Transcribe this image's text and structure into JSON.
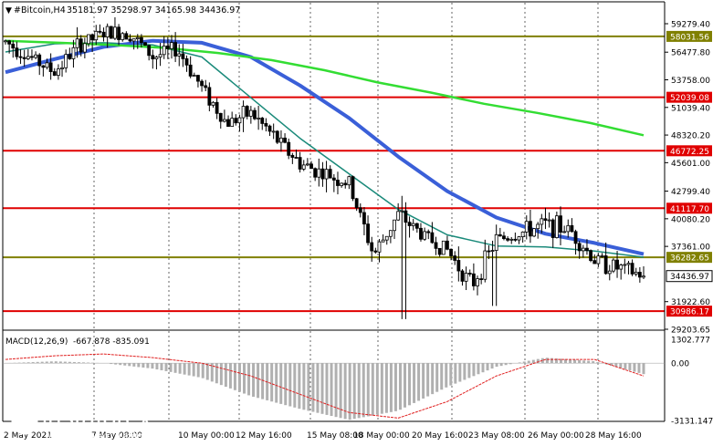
{
  "header": {
    "symbol": "#Bitcoin,H4",
    "ohlc": "35181.97 35298.97 34165.98 34436.97"
  },
  "macd": {
    "label": "MACD(12,26,9)",
    "values": "-667.878 -835.091",
    "ticks": [
      "1302.777",
      "0.00",
      "-3131.147"
    ]
  },
  "price_axis": {
    "ticks": [
      "59279.40",
      "56477.80",
      "53758.00",
      "51039.40",
      "48320.20",
      "45601.00",
      "42799.40",
      "40080.20",
      "37361.00",
      "34436.97",
      "31922.60",
      "29203.65"
    ]
  },
  "time_axis": {
    "labels": [
      "2 May 2021",
      "7 May 08:00",
      "10 May 00:00",
      "12 May 16:00",
      "15 May 08:00",
      "18 May 00:00",
      "20 May 16:00",
      "23 May 08:00",
      "26 May 00:00",
      "28 May 16:00"
    ]
  },
  "levels": [
    {
      "label": "58031.56",
      "color": "#808000"
    },
    {
      "label": "52039.08",
      "color": "#e00000"
    },
    {
      "label": "46772.25",
      "color": "#e00000"
    },
    {
      "label": "41117.70",
      "color": "#e00000"
    },
    {
      "label": "36282.65",
      "color": "#808000"
    },
    {
      "label": "30986.17",
      "color": "#e00000"
    }
  ],
  "current_price": "34436.97",
  "watermark": {
    "brand": "instaforex",
    "sub": "Instant Forex Trading"
  },
  "colors": {
    "ma_fast": "#1a8a7a",
    "ma_mid": "#3a5fd8",
    "ma_slow": "#33dd33",
    "candles": "#000000",
    "macd_signal": "#e02020",
    "macd_hist": "#b0b0b0",
    "support_resistance": "#e00000",
    "pivot": "#808000"
  },
  "chart_data": {
    "type": "candlestick",
    "title": "#Bitcoin,H4",
    "timeframe": "H4",
    "last_ohlc": {
      "open": 35181.97,
      "high": 35298.97,
      "low": 34165.98,
      "close": 34436.97
    },
    "ylim": [
      29203.65,
      59279.4
    ],
    "price_levels": [
      58031.56,
      52039.08,
      46772.25,
      41117.7,
      36282.65,
      30986.17
    ],
    "close_path": [
      {
        "x": "2 May",
        "y": 57500
      },
      {
        "x": "4 May",
        "y": 56000
      },
      {
        "x": "5 May",
        "y": 54500
      },
      {
        "x": "7 May",
        "y": 57200
      },
      {
        "x": "8 May",
        "y": 58300
      },
      {
        "x": "9 May",
        "y": 58500
      },
      {
        "x": "10 May",
        "y": 56000
      },
      {
        "x": "11 May",
        "y": 56800
      },
      {
        "x": "12 May",
        "y": 53000
      },
      {
        "x": "13 May",
        "y": 49500
      },
      {
        "x": "14 May",
        "y": 50500
      },
      {
        "x": "15 May",
        "y": 48000
      },
      {
        "x": "16 May",
        "y": 45500
      },
      {
        "x": "17 May",
        "y": 44500
      },
      {
        "x": "18 May",
        "y": 43500
      },
      {
        "x": "19 May",
        "y": 36500
      },
      {
        "x": "20 May",
        "y": 40500
      },
      {
        "x": "21 May",
        "y": 38500
      },
      {
        "x": "22 May",
        "y": 37000
      },
      {
        "x": "23 May",
        "y": 33500
      },
      {
        "x": "24 May",
        "y": 38000
      },
      {
        "x": "25 May",
        "y": 38700
      },
      {
        "x": "26 May",
        "y": 39500
      },
      {
        "x": "27 May",
        "y": 39000
      },
      {
        "x": "28 May",
        "y": 36000
      },
      {
        "x": "29 May",
        "y": 35200
      },
      {
        "x": "30 May",
        "y": 34437
      }
    ],
    "moving_averages": [
      {
        "color": "#1a8a7a",
        "values": [
          56500,
          57300,
          57400,
          57200,
          56000,
          52000,
          48000,
          44500,
          41000,
          38500,
          37400,
          37300,
          36900,
          36300
        ]
      },
      {
        "color": "#3a5fd8",
        "values": [
          54500,
          55800,
          57000,
          57600,
          57400,
          56000,
          53200,
          50000,
          46200,
          42800,
          40200,
          38600,
          37700,
          36600
        ]
      },
      {
        "color": "#33dd33",
        "values": [
          57600,
          57400,
          57200,
          56900,
          56400,
          55700,
          54700,
          53500,
          52500,
          51400,
          50500,
          49500,
          48300
        ]
      }
    ],
    "macd": {
      "ylim": [
        -3131.147,
        1302.777
      ],
      "current": {
        "macd": -667.878,
        "signal": -835.091
      },
      "signal_path": [
        200,
        400,
        500,
        300,
        0,
        -700,
        -1700,
        -2700,
        -3000,
        -2100,
        -700,
        200,
        200,
        -700
      ],
      "histogram_path": [
        0,
        100,
        0,
        -300,
        -800,
        -1800,
        -2500,
        -3100,
        -2600,
        -1300,
        -200,
        300,
        100,
        -600
      ]
    }
  }
}
